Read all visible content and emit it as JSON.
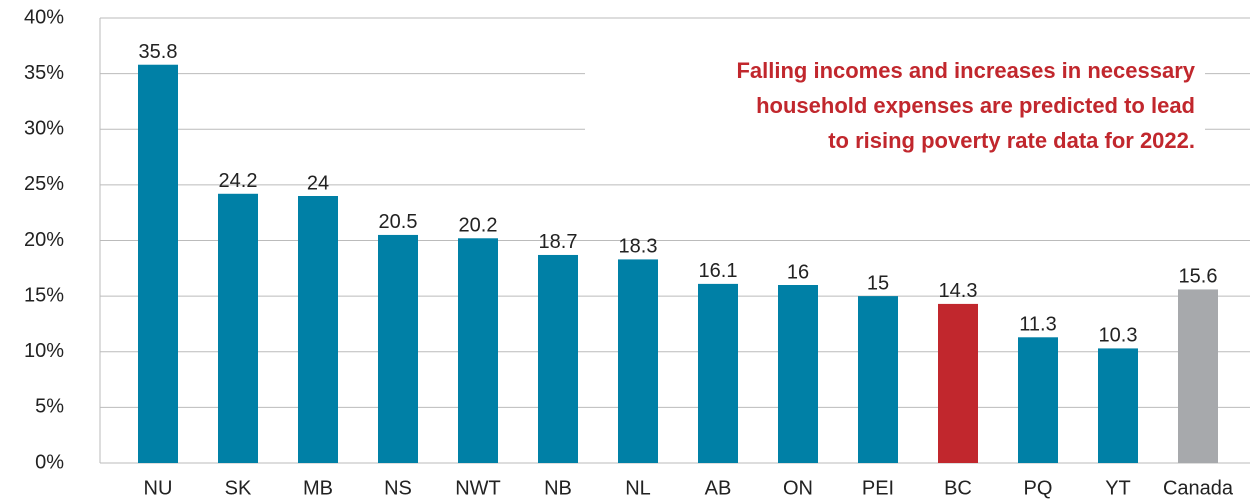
{
  "chart_data": {
    "type": "bar",
    "categories": [
      "NU",
      "SK",
      "MB",
      "NS",
      "NWT",
      "NB",
      "NL",
      "AB",
      "ON",
      "PEI",
      "BC",
      "PQ",
      "YT",
      "Canada"
    ],
    "values": [
      35.8,
      24.2,
      24,
      20.5,
      20.2,
      18.7,
      18.3,
      16.1,
      16,
      15,
      14.3,
      11.3,
      10.3,
      15.6
    ],
    "colors": [
      "#0080a6",
      "#0080a6",
      "#0080a6",
      "#0080a6",
      "#0080a6",
      "#0080a6",
      "#0080a6",
      "#0080a6",
      "#0080a6",
      "#0080a6",
      "#c1272d",
      "#0080a6",
      "#0080a6",
      "#a7a9ac"
    ],
    "ylim": [
      0,
      40
    ],
    "yticks": [
      {
        "value": 0,
        "label": "0%"
      },
      {
        "value": 5,
        "label": "5%"
      },
      {
        "value": 10,
        "label": "10%"
      },
      {
        "value": 15,
        "label": "15%"
      },
      {
        "value": 20,
        "label": "20%"
      },
      {
        "value": 25,
        "label": "25%"
      },
      {
        "value": 30,
        "label": "30%"
      },
      {
        "value": 35,
        "label": "35%"
      },
      {
        "value": 40,
        "label": "40%"
      }
    ],
    "grid": true,
    "annotation": [
      "Falling incomes and increases in necessary",
      "household expenses are predicted to lead",
      "to rising poverty rate data for 2022."
    ]
  }
}
